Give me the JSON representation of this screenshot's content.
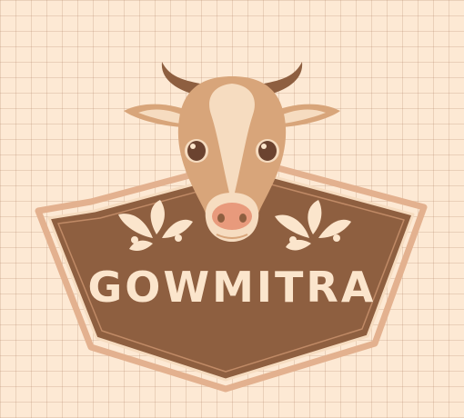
{
  "logo": {
    "brand_name": "GOWMITRA",
    "mascot_icon": "cow-head-icon",
    "ornament_icon": "splash-leaf-icon"
  },
  "colors": {
    "background": "#fde9d4",
    "grid_line": "#e3c2a6",
    "badge_brown": "#8e5f40",
    "badge_outline": "#e3b18f",
    "cream": "#fbe5cc",
    "cow_tan": "#d8a57a",
    "cow_light": "#f6dcc0",
    "cow_dark": "#6b4330",
    "nose_pink": "#e89a7c"
  }
}
